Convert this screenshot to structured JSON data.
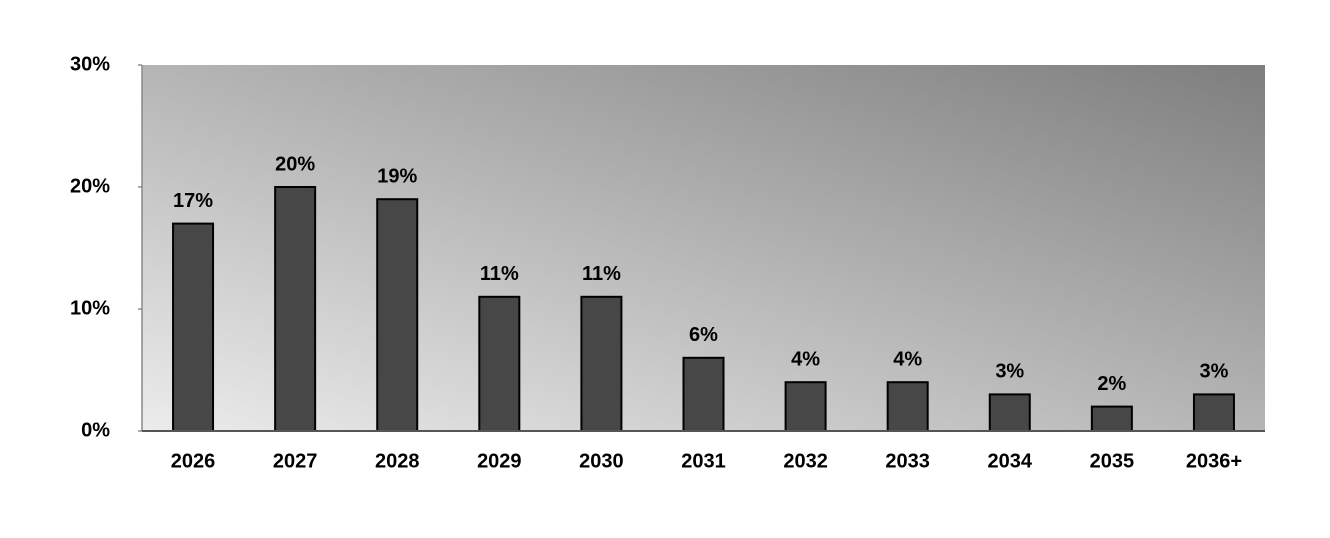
{
  "chart_data": {
    "type": "bar",
    "categories": [
      "2026",
      "2027",
      "2028",
      "2029",
      "2030",
      "2031",
      "2032",
      "2033",
      "2034",
      "2035",
      "2036+"
    ],
    "values": [
      17,
      20,
      19,
      11,
      11,
      6,
      4,
      4,
      3,
      2,
      3
    ],
    "value_labels": [
      "17%",
      "20%",
      "19%",
      "11%",
      "11%",
      "6%",
      "4%",
      "4%",
      "3%",
      "2%",
      "3%"
    ],
    "color": "#474747",
    "ylim": [
      0,
      30
    ],
    "yticks": [
      {
        "value": 0,
        "label": "0%"
      },
      {
        "value": 10,
        "label": "10%"
      },
      {
        "value": 20,
        "label": "20%"
      },
      {
        "value": 30,
        "label": "30%"
      }
    ]
  }
}
